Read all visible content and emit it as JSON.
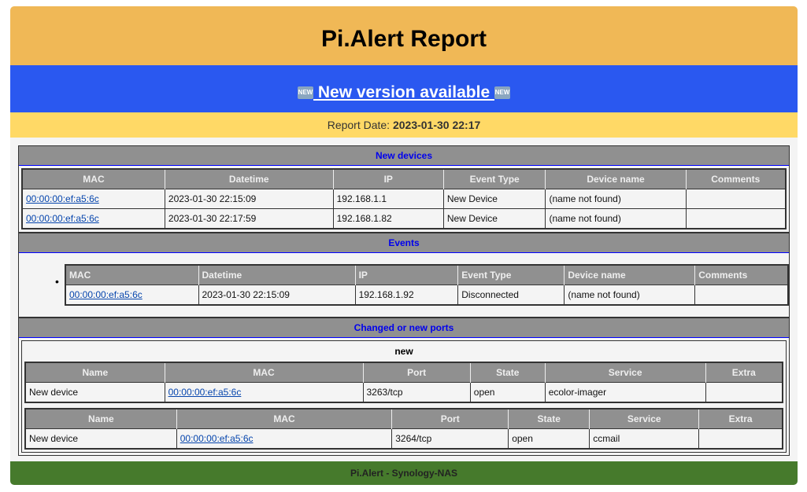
{
  "header": {
    "title": "Pi.Alert Report"
  },
  "banner": {
    "new_icon": "NEW",
    "link": " New version available "
  },
  "report": {
    "label": "Report Date: ",
    "date": "2023-01-30 22:17"
  },
  "new_devices": {
    "title": "New devices",
    "columns": [
      "MAC",
      "Datetime",
      "IP",
      "Event Type",
      "Device name",
      "Comments"
    ],
    "rows": [
      [
        "00:00:00:ef:a5:6c",
        "2023-01-30 22:15:09",
        "192.168.1.1",
        "New Device",
        "(name not found)",
        ""
      ],
      [
        "00:00:00:ef:a5:6c",
        "2023-01-30 22:17:59",
        "192.168.1.82",
        "New Device",
        "(name not found)",
        ""
      ]
    ]
  },
  "events": {
    "title": "Events",
    "columns": [
      "MAC",
      "Datetime",
      "IP",
      "Event Type",
      "Device name",
      "Comments"
    ],
    "rows": [
      [
        "00:00:00:ef:a5:6c",
        "2023-01-30 22:15:09",
        "192.168.1.92",
        "Disconnected",
        "(name not found)",
        ""
      ]
    ]
  },
  "ports": {
    "title": "Changed or new ports",
    "group": "new",
    "columns": [
      "Name",
      "MAC",
      "Port",
      "State",
      "Service",
      "Extra"
    ],
    "tables": [
      [
        [
          "New device",
          "00:00:00:ef:a5:6c",
          "3263/tcp",
          "open",
          "ecolor-imager",
          ""
        ]
      ],
      [
        [
          "New device",
          "00:00:00:ef:a5:6c",
          "3264/tcp",
          "open",
          "ccmail",
          ""
        ]
      ]
    ]
  },
  "footer": {
    "text": "Pi.Alert - Synology-NAS"
  },
  "colors": {
    "header": "#f0b856",
    "banner": "#2a58f0",
    "date_bar": "#ffd966",
    "footer": "#467a2c",
    "section": "#909090"
  }
}
